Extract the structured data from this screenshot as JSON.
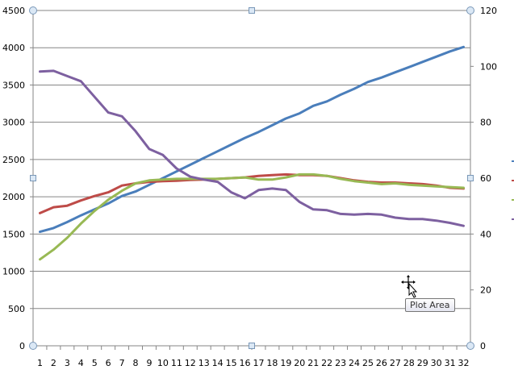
{
  "chart_data": {
    "type": "line",
    "categories": [
      "1",
      "2",
      "3",
      "4",
      "5",
      "6",
      "7",
      "8",
      "9",
      "10",
      "11",
      "12",
      "13",
      "14",
      "15",
      "16",
      "17",
      "18",
      "19",
      "20",
      "21",
      "22",
      "23",
      "24",
      "25",
      "26",
      "27",
      "28",
      "29",
      "30",
      "31",
      "32"
    ],
    "ylim": [
      0,
      4500
    ],
    "yticks": [
      "0",
      "500",
      "1000",
      "1500",
      "2000",
      "2500",
      "3000",
      "3500",
      "4000",
      "4500"
    ],
    "y2lim": [
      0,
      120
    ],
    "y2ticks": [
      "0",
      "20",
      "40",
      "60",
      "80",
      "100",
      "120"
    ],
    "grid": true,
    "legend": "right (cut off)",
    "series": [
      {
        "color": "#4a7ebb",
        "values": [
          1530,
          1580,
          1660,
          1750,
          1830,
          1910,
          2010,
          2070,
          2160,
          2250,
          2340,
          2430,
          2520,
          2610,
          2700,
          2790,
          2870,
          2960,
          3050,
          3120,
          3220,
          3280,
          3370,
          3450,
          3540,
          3600,
          3670,
          3740,
          3810,
          3880,
          3950,
          4010
        ]
      },
      {
        "color": "#be4b48",
        "values": [
          1780,
          1860,
          1880,
          1950,
          2010,
          2060,
          2150,
          2180,
          2200,
          2210,
          2215,
          2225,
          2230,
          2240,
          2250,
          2260,
          2280,
          2290,
          2300,
          2290,
          2290,
          2280,
          2250,
          2220,
          2200,
          2190,
          2190,
          2180,
          2170,
          2150,
          2120,
          2110
        ]
      },
      {
        "color": "#98b954",
        "values": [
          1160,
          1290,
          1450,
          1640,
          1810,
          1960,
          2080,
          2180,
          2220,
          2230,
          2240,
          2240,
          2240,
          2240,
          2250,
          2260,
          2230,
          2230,
          2260,
          2300,
          2300,
          2280,
          2240,
          2210,
          2190,
          2170,
          2180,
          2160,
          2150,
          2140,
          2130,
          2120
        ]
      },
      {
        "color": "#7d60a0",
        "values": [
          3680,
          3690,
          3620,
          3550,
          3340,
          3130,
          3080,
          2880,
          2640,
          2560,
          2380,
          2270,
          2230,
          2200,
          2060,
          1980,
          2090,
          2110,
          2090,
          1930,
          1830,
          1820,
          1770,
          1760,
          1770,
          1760,
          1720,
          1700,
          1700,
          1680,
          1650,
          1610
        ]
      }
    ]
  },
  "tooltip": "Plot Area",
  "icons": {
    "cursor": "move-cursor-icon"
  }
}
